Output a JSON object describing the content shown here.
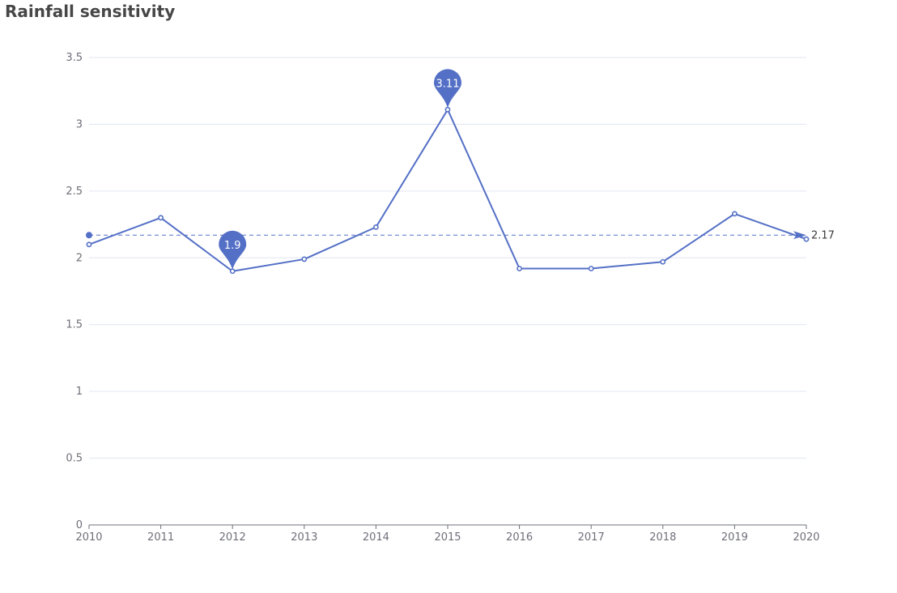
{
  "chart_data": {
    "type": "line",
    "title": "Rainfall sensitivity",
    "x": [
      "2010",
      "2011",
      "2012",
      "2013",
      "2014",
      "2015",
      "2016",
      "2017",
      "2018",
      "2019",
      "2020"
    ],
    "series": [
      {
        "values": [
          2.1,
          2.3,
          1.9,
          1.99,
          2.23,
          3.11,
          1.92,
          1.92,
          1.97,
          2.33,
          2.14
        ]
      }
    ],
    "ylim": [
      0,
      3.5
    ],
    "yticks": [
      "0",
      "0.5",
      "1",
      "1.5",
      "2",
      "2.5",
      "3",
      "3.5"
    ],
    "grid": true,
    "mark_points": [
      {
        "kind": "max",
        "x": "2015",
        "value": 3.11,
        "label": "3.11"
      },
      {
        "kind": "min",
        "x": "2012",
        "value": 1.9,
        "label": "1.9"
      }
    ],
    "mark_line": {
      "kind": "average",
      "value": 2.17,
      "label": "2.17"
    },
    "colors": {
      "series": "#5470c6",
      "grid": "#e0e6f1",
      "axis": "#6e7079"
    }
  }
}
